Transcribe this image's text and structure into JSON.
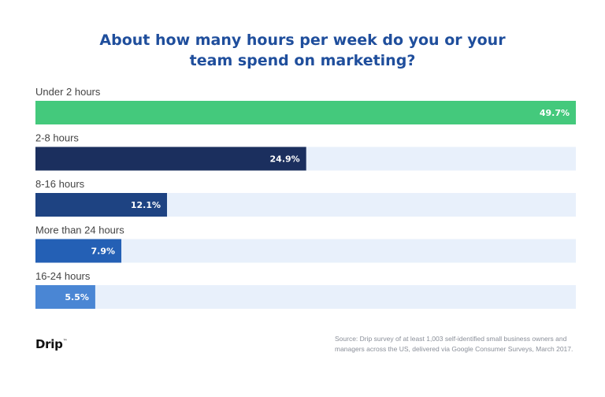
{
  "title": [
    "About how many hours per week do you or your",
    "team spend on marketing?"
  ],
  "chart_data": {
    "type": "bar",
    "orientation": "horizontal",
    "categories": [
      "Under 2 hours",
      "2-8 hours",
      "8-16 hours",
      "More than 24 hours",
      "16-24 hours"
    ],
    "values": [
      49.7,
      24.9,
      12.1,
      7.9,
      5.5
    ],
    "value_labels": [
      "49.7%",
      "24.9%",
      "12.1%",
      "7.9%",
      "5.5%"
    ],
    "xlim": [
      0,
      49.7
    ],
    "grid": false,
    "bar_colors": [
      "#44c97c",
      "#1b2f5e",
      "#1e4382",
      "#2460b5",
      "#4a86d4"
    ],
    "track_color": "#e8f0fb"
  },
  "source": [
    "Source: Drip survey of at least 1,003 self-identified small business owners and",
    "managers across the US, delivered via Google Consumer Surveys, March 2017."
  ],
  "logo": {
    "text": "Drip",
    "mark": "™"
  }
}
